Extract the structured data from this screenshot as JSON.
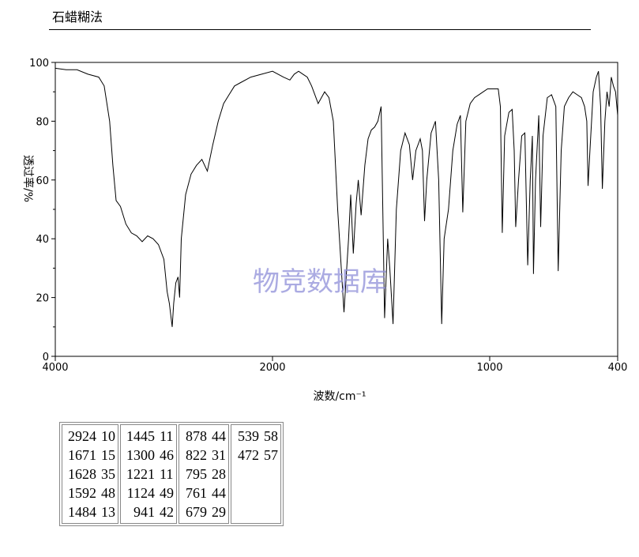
{
  "header": {
    "title": "石蜡糊法"
  },
  "watermark": "物竞数据库",
  "chart_data": {
    "type": "line",
    "title": "",
    "xlabel": "波数/cm⁻¹",
    "ylabel": "透过率/%",
    "xlim": [
      4000,
      400
    ],
    "ylim": [
      0,
      100
    ],
    "x_ticks": [
      4000,
      2000,
      1000,
      400
    ],
    "x_tick_labels": [
      "4000",
      "2000",
      "1000",
      "400"
    ],
    "y_ticks": [
      0,
      20,
      40,
      60,
      80,
      100
    ],
    "y_tick_labels": [
      "0",
      "20",
      "40",
      "60",
      "80",
      "100"
    ],
    "line_color": "#000000",
    "series": [
      {
        "x": [
          4000,
          3900,
          3800,
          3700,
          3600,
          3550,
          3500,
          3470,
          3440,
          3400,
          3350,
          3300,
          3250,
          3200,
          3150,
          3100,
          3050,
          3000,
          2970,
          2950,
          2930,
          2924,
          2910,
          2890,
          2870,
          2855,
          2840,
          2800,
          2750,
          2700,
          2650,
          2600,
          2550,
          2500,
          2450,
          2400,
          2350,
          2300,
          2200,
          2100,
          2000,
          1950,
          1920,
          1900,
          1880,
          1860,
          1840,
          1820,
          1790,
          1760,
          1740,
          1720,
          1700,
          1671,
          1650,
          1640,
          1628,
          1615,
          1605,
          1592,
          1575,
          1560,
          1545,
          1530,
          1515,
          1500,
          1484,
          1470,
          1460,
          1445,
          1430,
          1410,
          1390,
          1370,
          1355,
          1340,
          1320,
          1310,
          1300,
          1290,
          1270,
          1250,
          1235,
          1221,
          1210,
          1190,
          1170,
          1150,
          1135,
          1124,
          1110,
          1090,
          1070,
          1050,
          1030,
          1010,
          1000,
          980,
          960,
          950,
          941,
          930,
          910,
          895,
          885,
          878,
          865,
          850,
          835,
          822,
          810,
          800,
          795,
          785,
          770,
          761,
          750,
          730,
          710,
          690,
          679,
          665,
          650,
          630,
          610,
          590,
          570,
          555,
          545,
          539,
          530,
          515,
          500,
          490,
          480,
          472,
          460,
          450,
          440,
          430,
          420,
          410,
          400
        ],
        "y": [
          98,
          97.5,
          97.5,
          96,
          95,
          92,
          80,
          65,
          53,
          51,
          45,
          42,
          41,
          39,
          41,
          40,
          38,
          33,
          22,
          18,
          12,
          10,
          18,
          25,
          27,
          20,
          40,
          55,
          62,
          65,
          67,
          63,
          72,
          80,
          86,
          89,
          92,
          93,
          95,
          96,
          97,
          95,
          94,
          96,
          97,
          96,
          95,
          92,
          86,
          90,
          88,
          80,
          50,
          15,
          40,
          55,
          35,
          52,
          60,
          48,
          65,
          74,
          77,
          78,
          80,
          85,
          13,
          40,
          30,
          11,
          50,
          70,
          76,
          72,
          60,
          70,
          74,
          70,
          46,
          60,
          76,
          80,
          60,
          11,
          40,
          50,
          70,
          79,
          82,
          49,
          80,
          86,
          88,
          89,
          90,
          91,
          91,
          91,
          91,
          85,
          42,
          75,
          83,
          84,
          70,
          44,
          60,
          75,
          76,
          31,
          60,
          75,
          28,
          60,
          82,
          44,
          75,
          88,
          89,
          85,
          29,
          70,
          85,
          88,
          90,
          89,
          88,
          85,
          80,
          58,
          70,
          90,
          95,
          97,
          85,
          57,
          80,
          90,
          85,
          95,
          92,
          90,
          82
        ]
      }
    ],
    "peaks": [
      [
        "2924",
        "10"
      ],
      [
        "1671",
        "15"
      ],
      [
        "1628",
        "35"
      ],
      [
        "1592",
        "48"
      ],
      [
        "1484",
        "13"
      ],
      [
        "1445",
        "11"
      ],
      [
        "1300",
        "46"
      ],
      [
        "1221",
        "11"
      ],
      [
        "1124",
        "49"
      ],
      [
        "941",
        "42"
      ],
      [
        "878",
        "44"
      ],
      [
        "822",
        "31"
      ],
      [
        "795",
        "28"
      ],
      [
        "761",
        "44"
      ],
      [
        "679",
        "29"
      ],
      [
        "539",
        "58"
      ],
      [
        "472",
        "57"
      ]
    ]
  }
}
